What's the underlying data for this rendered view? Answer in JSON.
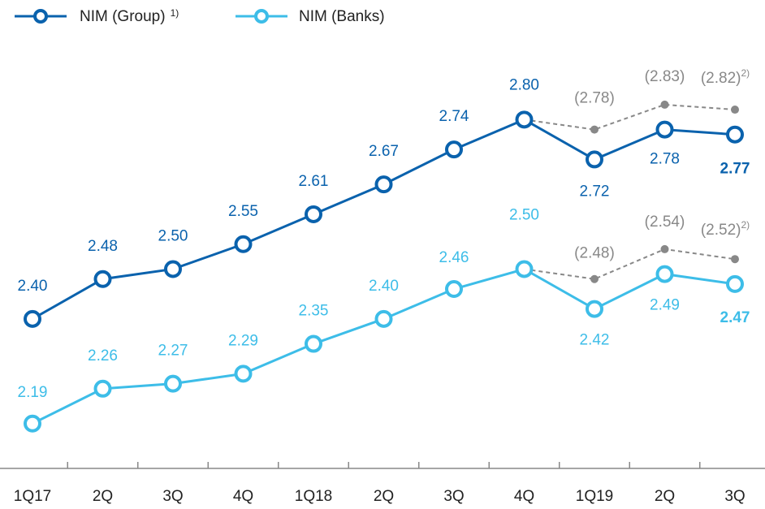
{
  "chart_data": {
    "type": "line",
    "categories": [
      "1Q17",
      "2Q",
      "3Q",
      "4Q",
      "1Q18",
      "2Q",
      "3Q",
      "4Q",
      "1Q19",
      "2Q",
      "3Q"
    ],
    "ylim": [
      2.1,
      3.04
    ],
    "series": [
      {
        "name": "NIM (Group)",
        "note": "1)",
        "color": "#0a62ad",
        "values": [
          2.4,
          2.48,
          2.5,
          2.55,
          2.61,
          2.67,
          2.74,
          2.8,
          2.72,
          2.78,
          2.77
        ],
        "value_labels": [
          "2.40",
          "2.48",
          "2.50",
          "2.55",
          "2.61",
          "2.67",
          "2.74",
          "2.80",
          "2.72",
          "2.78",
          "2.77"
        ]
      },
      {
        "name": "NIM (Banks)",
        "color": "#3dbde8",
        "values": [
          2.19,
          2.26,
          2.27,
          2.29,
          2.35,
          2.4,
          2.46,
          2.5,
          2.42,
          2.49,
          2.47
        ],
        "value_labels": [
          "2.19",
          "2.26",
          "2.27",
          "2.29",
          "2.35",
          "2.40",
          "2.46",
          "2.50",
          "2.42",
          "2.49",
          "2.47"
        ]
      },
      {
        "color": "#888888",
        "dashed": true,
        "values": [
          null,
          null,
          null,
          null,
          null,
          null,
          null,
          2.8,
          2.78,
          2.83,
          2.82
        ],
        "value_labels": [
          null,
          null,
          null,
          null,
          null,
          null,
          null,
          null,
          "(2.78)",
          "(2.83)",
          "(2.82)"
        ],
        "value_notes": [
          null,
          null,
          null,
          null,
          null,
          null,
          null,
          null,
          null,
          null,
          "2)"
        ]
      },
      {
        "color": "#888888",
        "dashed": true,
        "values": [
          null,
          null,
          null,
          null,
          null,
          null,
          null,
          2.5,
          2.48,
          2.54,
          2.52
        ],
        "value_labels": [
          null,
          null,
          null,
          null,
          null,
          null,
          null,
          null,
          "(2.48)",
          "(2.54)",
          "(2.52)"
        ],
        "value_notes": [
          null,
          null,
          null,
          null,
          null,
          null,
          null,
          null,
          null,
          null,
          "2)"
        ]
      }
    ]
  }
}
